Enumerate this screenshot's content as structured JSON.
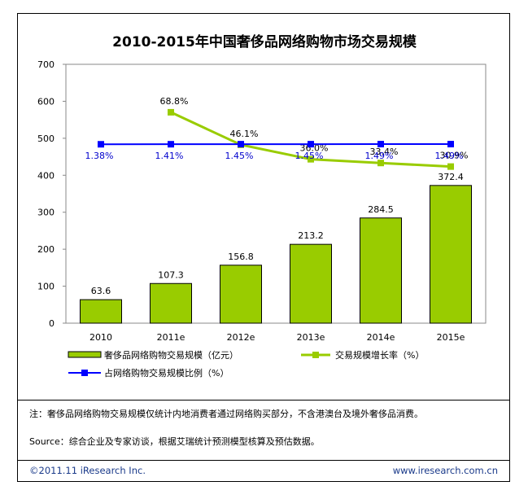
{
  "title": "2010-2015年中国奢侈品网络购物市场交易规模",
  "note": "注：奢侈品网络购物交易规模仅统计内地消费者通过网络购买部分，不含港澳台及境外奢侈品消费。",
  "source": "Source：综合企业及专家访谈，根据艾瑞统计预测模型核算及预估数据。",
  "footer": {
    "copyright": "©2011.11 iResearch Inc.",
    "website": "www.iresearch.com.cn"
  },
  "colors": {
    "bar": "#99cc00",
    "bar_stroke": "#000000",
    "growth_line": "#99cc00",
    "share_line": "#0000ff",
    "share_label": "#0000cc"
  },
  "chart_data": {
    "type": "bar",
    "categories": [
      "2010",
      "2011e",
      "2012e",
      "2013e",
      "2014e",
      "2015e"
    ],
    "ylim": [
      0,
      700
    ],
    "yticks": [
      "0",
      "100",
      "200",
      "300",
      "400",
      "500",
      "600",
      "700"
    ],
    "series": [
      {
        "name": "奢侈品网络购物交易规模（亿元）",
        "kind": "bar",
        "values": [
          63.6,
          107.3,
          156.8,
          213.2,
          284.5,
          372.4
        ],
        "labels": [
          "63.6",
          "107.3",
          "156.8",
          "213.2",
          "284.5",
          "372.4"
        ]
      },
      {
        "name": "交易规模增长率（%）",
        "kind": "line",
        "values": [
          null,
          68.8,
          46.1,
          36.0,
          33.4,
          30.9
        ],
        "labels": [
          "",
          "68.8%",
          "46.1%",
          "36.0%",
          "33.4%",
          "30.9%"
        ]
      },
      {
        "name": "占网络购物交易规模比例（%）",
        "kind": "line",
        "values": [
          1.38,
          1.41,
          1.45,
          1.45,
          1.49,
          1.49
        ],
        "labels": [
          "1.38%",
          "1.41%",
          "1.45%",
          "1.45%",
          "1.49%",
          "1.49%"
        ]
      }
    ],
    "legend_position": "bottom"
  }
}
